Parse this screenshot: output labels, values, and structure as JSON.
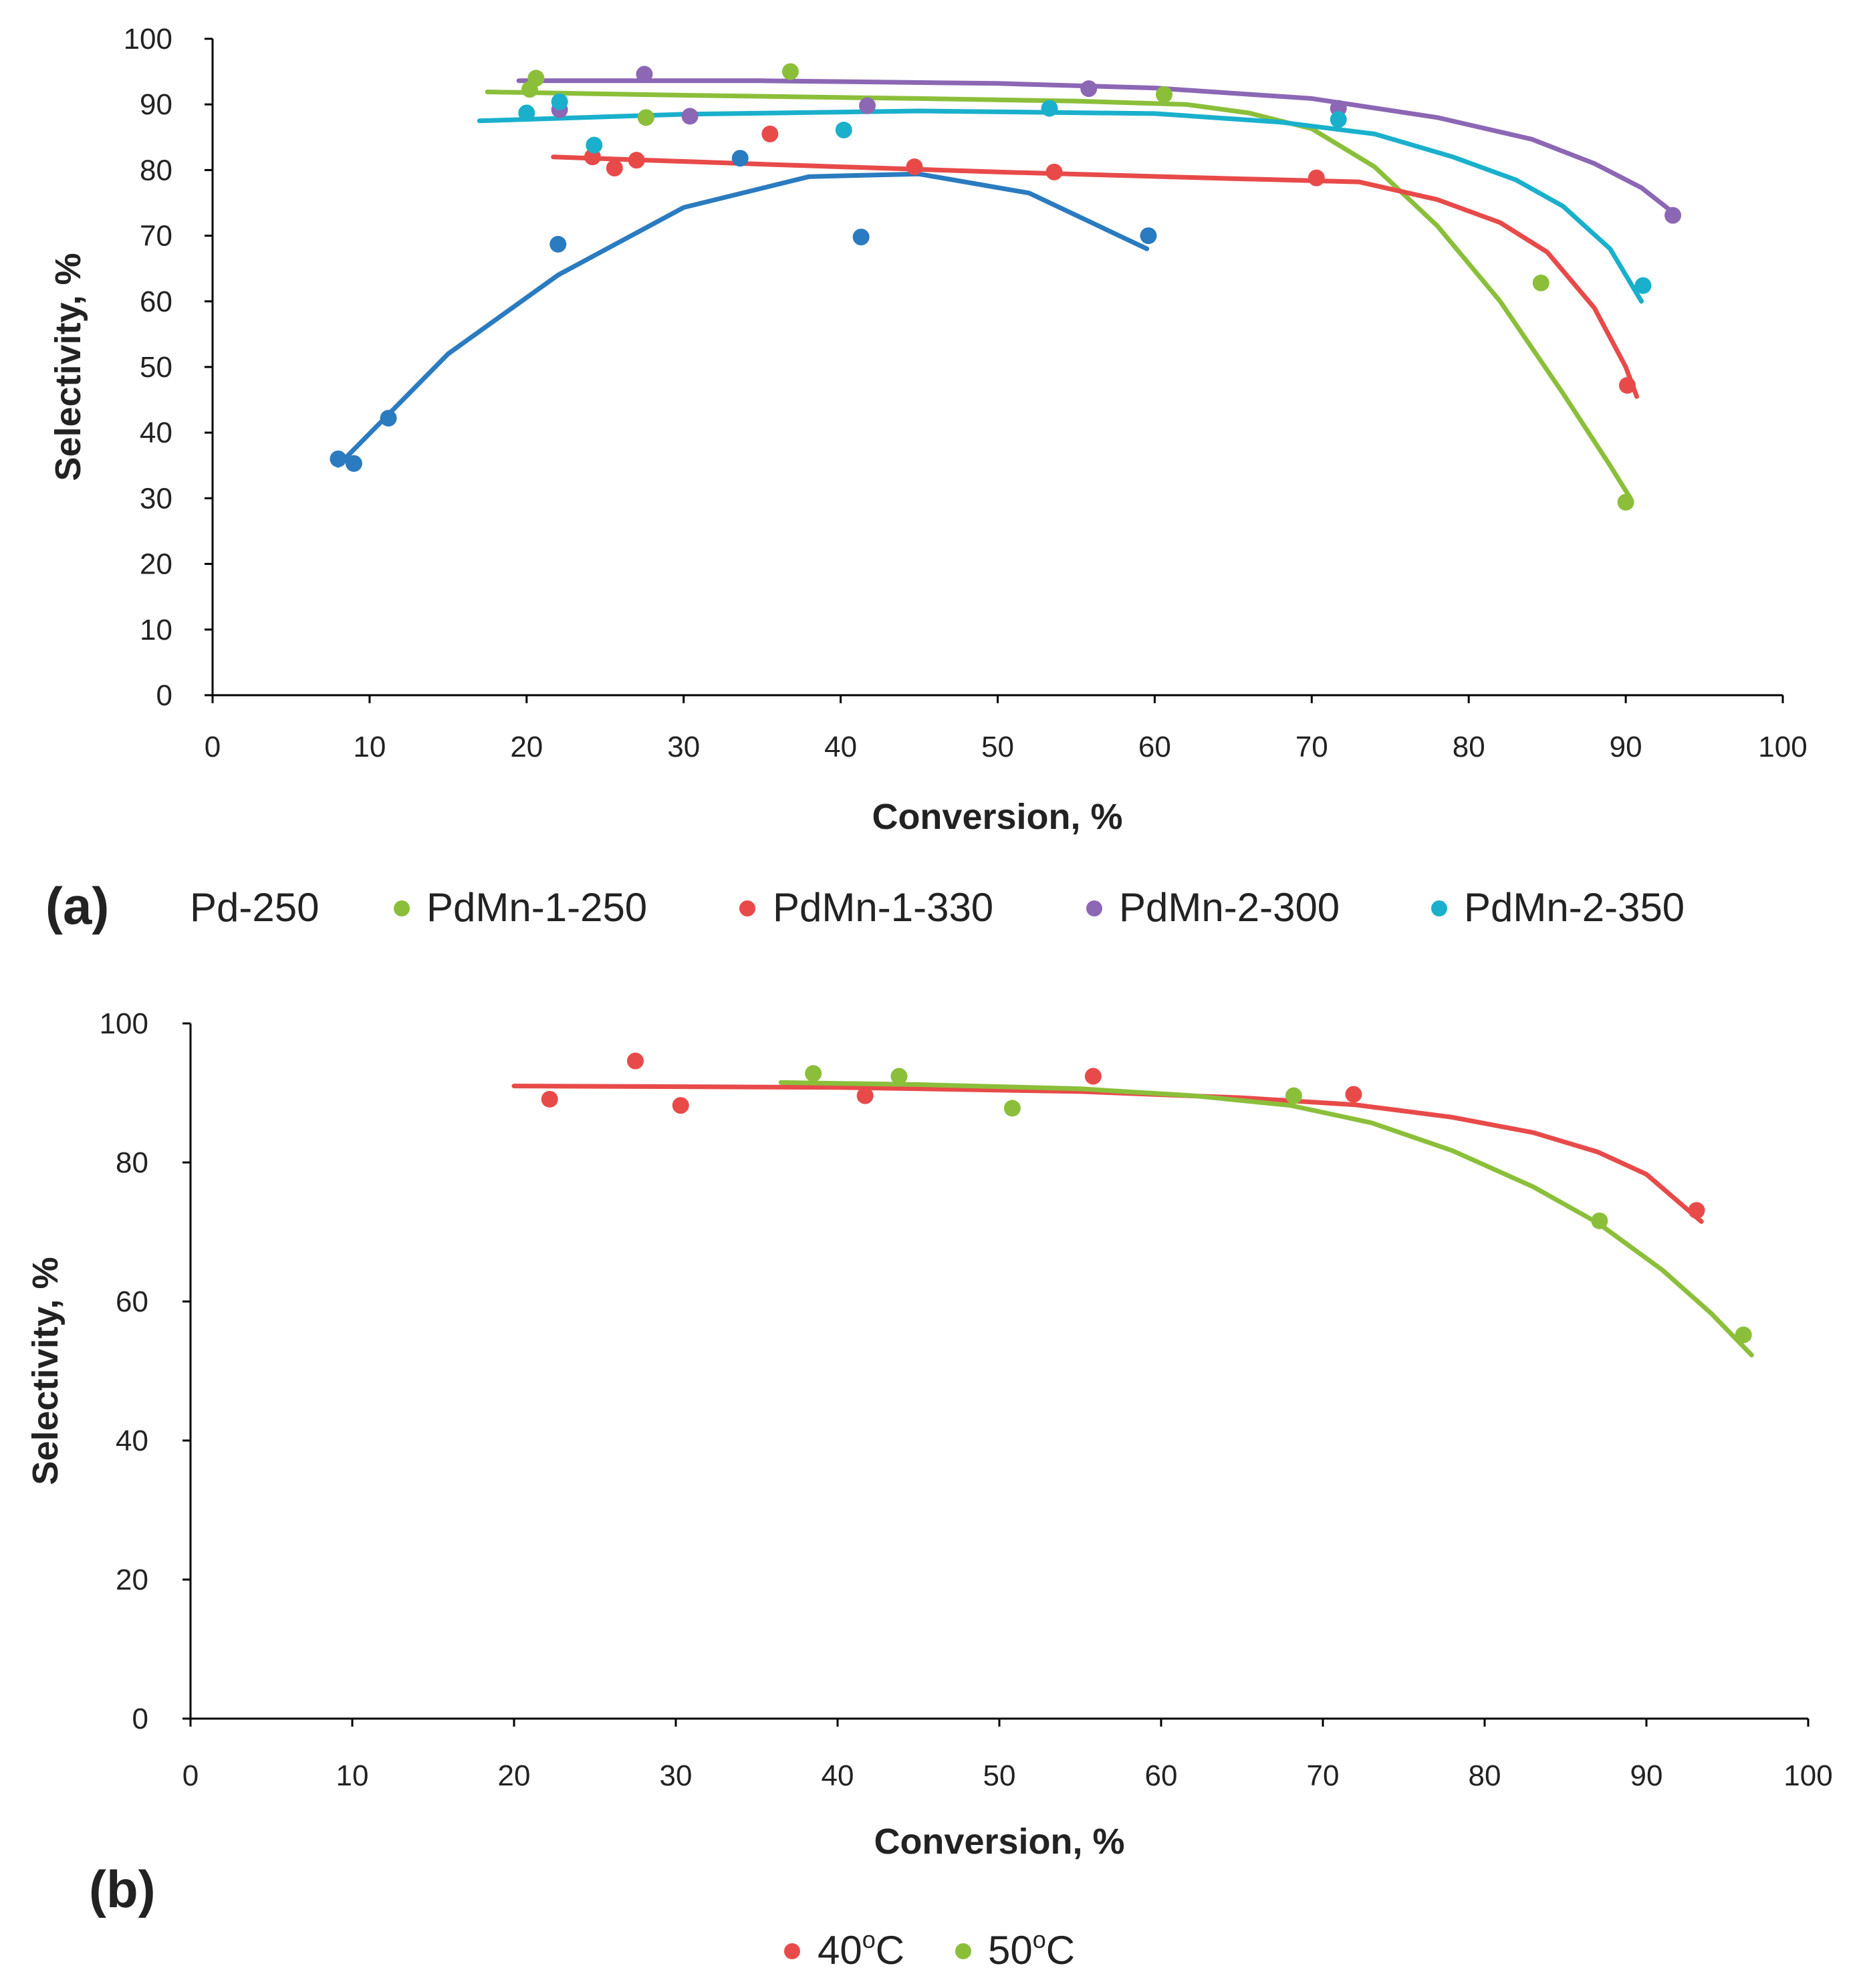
{
  "chart_data": [
    {
      "type": "scatter",
      "panel_label": "(a)",
      "xlabel": "Conversion, %",
      "ylabel": "Selectivity, %",
      "xlim": [
        0,
        100
      ],
      "ylim": [
        0,
        100
      ],
      "xticks": [
        0,
        10,
        20,
        30,
        40,
        50,
        60,
        70,
        80,
        90,
        100
      ],
      "yticks": [
        0,
        10,
        20,
        30,
        40,
        50,
        60,
        70,
        80,
        90,
        100
      ],
      "legend_position": "bottom",
      "series": [
        {
          "name": "Pd-250",
          "color": "#2a7bbf",
          "show_marker_in_legend": false,
          "points": [
            [
              8,
              36
            ],
            [
              9,
              35.3
            ],
            [
              11.2,
              42.2
            ],
            [
              22,
              68.7
            ],
            [
              33.6,
              81.8
            ],
            [
              41.3,
              69.8
            ],
            [
              59.6,
              70
            ]
          ],
          "trend": [
            [
              8,
              35
            ],
            [
              15,
              52
            ],
            [
              22,
              64
            ],
            [
              30,
              74.3
            ],
            [
              38,
              79
            ],
            [
              45,
              79.4
            ],
            [
              52,
              76.5
            ],
            [
              59.5,
              68
            ]
          ]
        },
        {
          "name": "PdMn-1-250",
          "color": "#8bbf3a",
          "show_marker_in_legend": true,
          "points": [
            [
              20.2,
              92.3
            ],
            [
              20.6,
              94
            ],
            [
              27.6,
              88
            ],
            [
              36.8,
              95
            ],
            [
              60.6,
              91.5
            ],
            [
              84.6,
              62.8
            ],
            [
              90,
              29.4
            ]
          ],
          "trend": [
            [
              17.5,
              91.9
            ],
            [
              30,
              91.4
            ],
            [
              45,
              90.9
            ],
            [
              55,
              90.5
            ],
            [
              62,
              90
            ],
            [
              66,
              88.7
            ],
            [
              70,
              86.3
            ],
            [
              74,
              80.5
            ],
            [
              78,
              71.5
            ],
            [
              82,
              60
            ],
            [
              86,
              46
            ],
            [
              89,
              35
            ],
            [
              90.3,
              30
            ]
          ]
        },
        {
          "name": "PdMn-1-330",
          "color": "#e84a4a",
          "show_marker_in_legend": true,
          "points": [
            [
              24.2,
              82
            ],
            [
              25.6,
              80.3
            ],
            [
              27,
              81.5
            ],
            [
              35.5,
              85.5
            ],
            [
              44.7,
              80.5
            ],
            [
              53.6,
              79.7
            ],
            [
              70.3,
              78.8
            ],
            [
              90.1,
              47.2
            ]
          ],
          "trend": [
            [
              21.7,
              82
            ],
            [
              35,
              80.9
            ],
            [
              50,
              79.7
            ],
            [
              65,
              78.7
            ],
            [
              73,
              78.2
            ],
            [
              78,
              75.5
            ],
            [
              82,
              72
            ],
            [
              85,
              67.5
            ],
            [
              88,
              59
            ],
            [
              90,
              50
            ],
            [
              90.7,
              45.5
            ]
          ]
        },
        {
          "name": "PdMn-2-300",
          "color": "#8c67b4",
          "show_marker_in_legend": true,
          "points": [
            [
              22.1,
              89.2
            ],
            [
              27.5,
              94.6
            ],
            [
              30.4,
              88.2
            ],
            [
              41.7,
              89.8
            ],
            [
              55.8,
              92.4
            ],
            [
              71.7,
              89.4
            ],
            [
              93,
              73.1
            ]
          ],
          "trend": [
            [
              19.5,
              93.6
            ],
            [
              35,
              93.6
            ],
            [
              50,
              93.2
            ],
            [
              60,
              92.5
            ],
            [
              70,
              90.9
            ],
            [
              78,
              88
            ],
            [
              84,
              84.7
            ],
            [
              88,
              81
            ],
            [
              91,
              77.3
            ],
            [
              93.3,
              73
            ]
          ]
        },
        {
          "name": "PdMn-2-350",
          "color": "#1ab0cc",
          "show_marker_in_legend": true,
          "points": [
            [
              20,
              88.7
            ],
            [
              22.1,
              90.4
            ],
            [
              24.3,
              83.8
            ],
            [
              40.2,
              86.1
            ],
            [
              53.3,
              89.4
            ],
            [
              71.7,
              87.7
            ],
            [
              91.1,
              62.4
            ]
          ],
          "trend": [
            [
              17,
              87.5
            ],
            [
              30,
              88.5
            ],
            [
              45,
              89
            ],
            [
              60,
              88.6
            ],
            [
              68,
              87.3
            ],
            [
              74,
              85.5
            ],
            [
              79,
              82
            ],
            [
              83,
              78.5
            ],
            [
              86,
              74.5
            ],
            [
              89,
              68
            ],
            [
              91,
              60
            ]
          ]
        }
      ]
    },
    {
      "type": "scatter",
      "panel_label": "(b)",
      "xlabel": "Conversion, %",
      "ylabel": "Selectivity, %",
      "xlim": [
        0,
        100
      ],
      "ylim": [
        0,
        100
      ],
      "xticks": [
        0,
        10,
        20,
        30,
        40,
        50,
        60,
        70,
        80,
        90,
        100
      ],
      "yticks": [
        0,
        20,
        40,
        60,
        80,
        100
      ],
      "legend_position": "bottom",
      "series": [
        {
          "name": "40°C",
          "label_base": "40",
          "label_sup": "o",
          "label_unit": "C",
          "color": "#e84a4a",
          "show_marker_in_legend": true,
          "points": [
            [
              22.2,
              89.1
            ],
            [
              27.5,
              94.6
            ],
            [
              30.3,
              88.2
            ],
            [
              41.7,
              89.6
            ],
            [
              55.8,
              92.4
            ],
            [
              71.9,
              89.8
            ],
            [
              93.1,
              73.1
            ]
          ],
          "trend": [
            [
              20,
              91
            ],
            [
              40,
              90.8
            ],
            [
              55,
              90.2
            ],
            [
              65,
              89.3
            ],
            [
              72,
              88.3
            ],
            [
              78,
              86.5
            ],
            [
              83,
              84.3
            ],
            [
              87,
              81.5
            ],
            [
              90,
              78.3
            ],
            [
              93.4,
              71.5
            ]
          ]
        },
        {
          "name": "50°C",
          "label_base": "50",
          "label_sup": "o",
          "label_unit": "C",
          "color": "#8bbf3a",
          "show_marker_in_legend": true,
          "points": [
            [
              38.5,
              92.8
            ],
            [
              43.8,
              92.4
            ],
            [
              50.8,
              87.8
            ],
            [
              68.2,
              89.6
            ],
            [
              87.1,
              71.6
            ],
            [
              96,
              55.2
            ]
          ],
          "trend": [
            [
              36.5,
              91.5
            ],
            [
              45,
              91.2
            ],
            [
              55,
              90.6
            ],
            [
              62,
              89.6
            ],
            [
              68,
              88.2
            ],
            [
              73,
              85.7
            ],
            [
              78,
              81.7
            ],
            [
              83,
              76.5
            ],
            [
              87,
              71.3
            ],
            [
              91,
              64.5
            ],
            [
              94,
              58.3
            ],
            [
              96.5,
              52.3
            ]
          ]
        }
      ]
    }
  ]
}
